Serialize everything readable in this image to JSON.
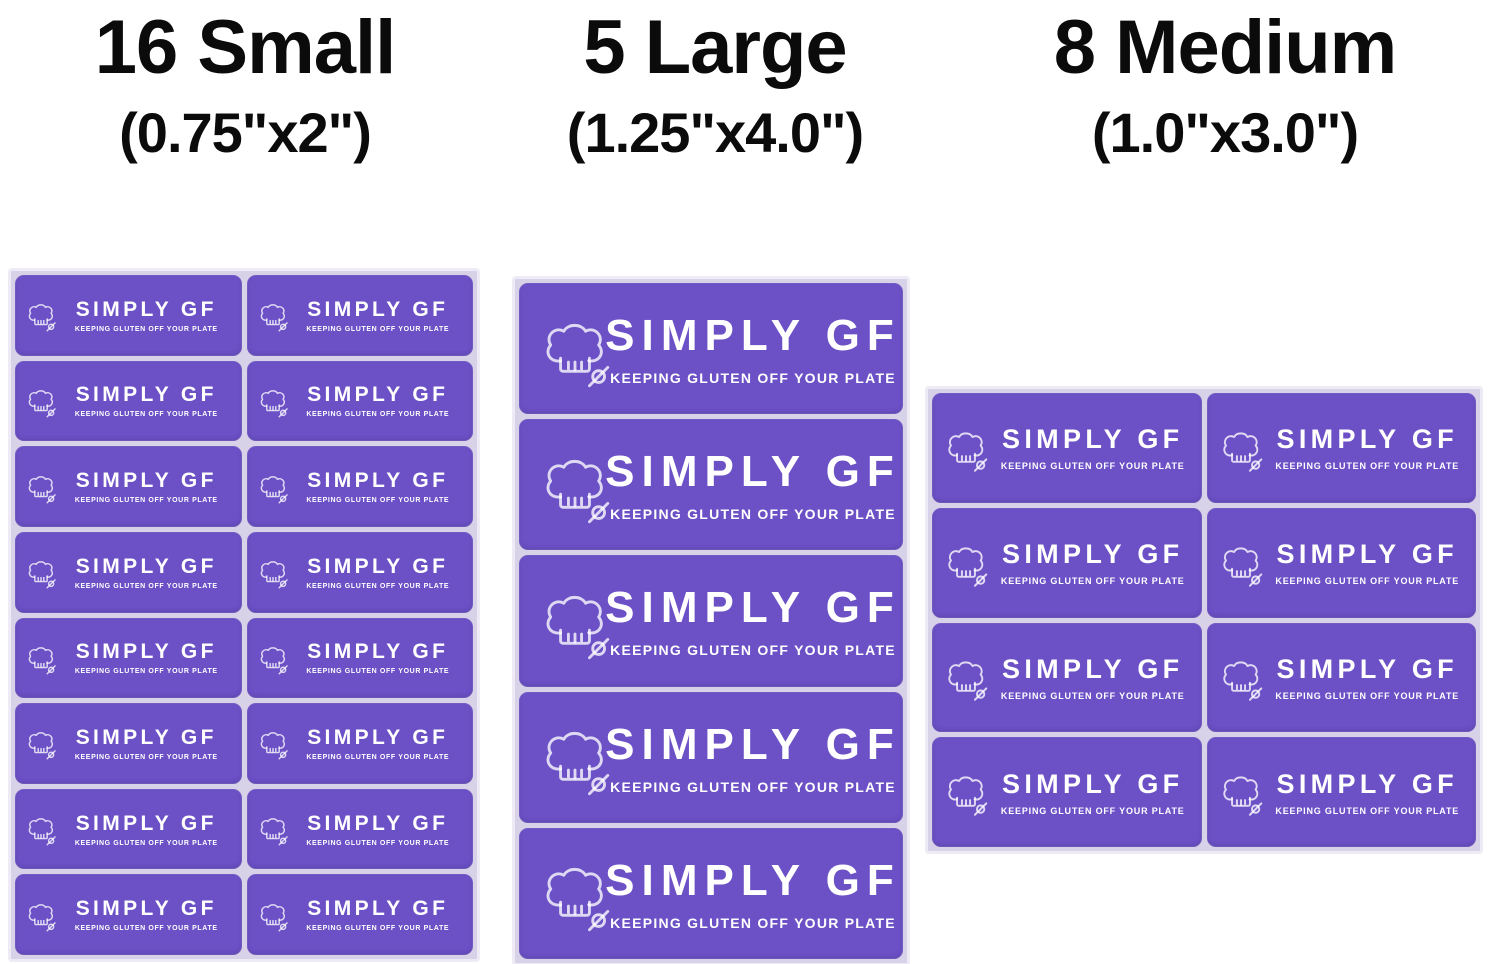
{
  "headers": [
    {
      "title": "16 Small",
      "size": "(0.75\"x2\")"
    },
    {
      "title": "5 Large",
      "size": "(1.25\"x4.0\")"
    },
    {
      "title": "8 Medium",
      "size": "(1.0\"x3.0\")"
    }
  ],
  "sticker": {
    "brand": "SIMPLY GF",
    "tagline": "KEEPING GLUTEN OFF YOUR PLATE"
  },
  "sheets": [
    {
      "id": "small",
      "count": 16,
      "rows": 8,
      "cols": 2
    },
    {
      "id": "large",
      "count": 5,
      "rows": 5,
      "cols": 1
    },
    {
      "id": "medium",
      "count": 8,
      "rows": 4,
      "cols": 2
    }
  ],
  "colors": {
    "label_purple": "#6b50c6",
    "sheet_backing": "#d7d2e8",
    "text_white": "#ffffff",
    "header_black": "#0b0b0b"
  }
}
